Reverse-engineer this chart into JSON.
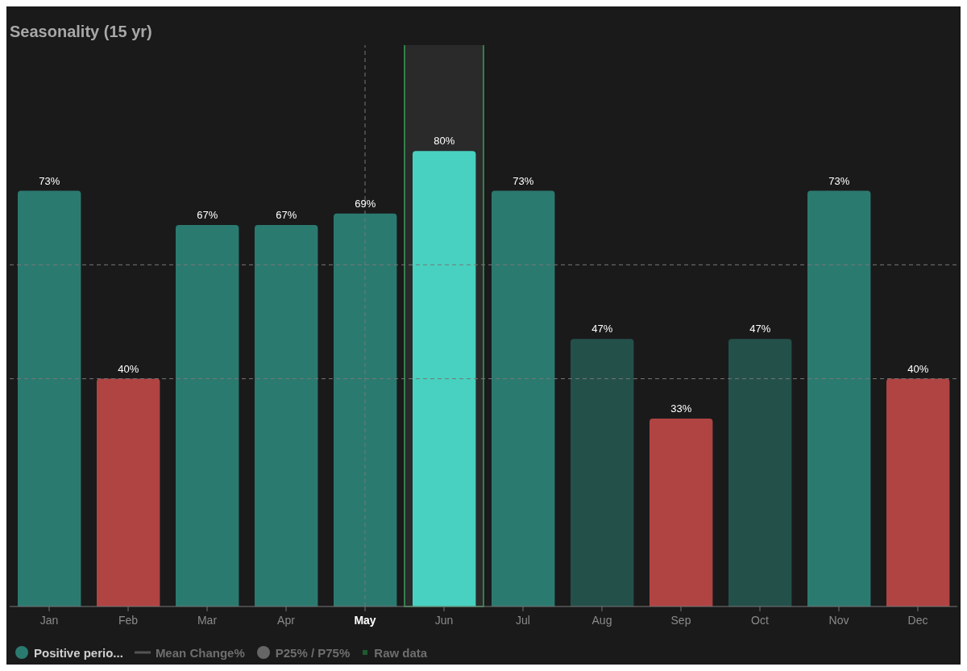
{
  "chart_data": {
    "type": "bar",
    "title": "Seasonality (15 yr)",
    "categories": [
      "Jan",
      "Feb",
      "Mar",
      "Apr",
      "May",
      "Jun",
      "Jul",
      "Aug",
      "Sep",
      "Oct",
      "Nov",
      "Dec"
    ],
    "series": [
      {
        "name": "Positive perio...",
        "color": "#2b7a70",
        "colors": [
          "#2b7a70",
          "#b04443",
          "#2b7a70",
          "#2b7a70",
          "#2b7a70",
          "#48d1c0",
          "#2b7a70",
          "#24504a",
          "#b04443",
          "#24504a",
          "#2b7a70",
          "#b04443"
        ],
        "values": [
          73,
          40,
          67,
          67,
          69,
          80,
          73,
          47,
          33,
          47,
          73,
          40
        ],
        "value_labels": [
          "73%",
          "40%",
          "67%",
          "67%",
          "69%",
          "80%",
          "73%",
          "47%",
          "33%",
          "47%",
          "73%",
          "40%"
        ]
      },
      {
        "name": "Mean Change%",
        "type": "line",
        "color": "#555555",
        "values": [
          null,
          null,
          null,
          null,
          null,
          null,
          null,
          null,
          null,
          null,
          null,
          null
        ]
      },
      {
        "name": "P25% / P75%",
        "type": "scatter",
        "marker": "circle",
        "color": "#666666",
        "values": [
          null,
          null,
          null,
          null,
          null,
          null,
          null,
          null,
          null,
          null,
          null,
          null
        ]
      },
      {
        "name": "Raw data",
        "type": "scatter",
        "marker": "square",
        "color": "#1e5a2e",
        "values": [
          null,
          null,
          null,
          null,
          null,
          null,
          null,
          null,
          null,
          null,
          null,
          null
        ]
      }
    ],
    "ylim": [
      0,
      100
    ],
    "ref_lines": [
      {
        "axis": "y",
        "value": 40,
        "color": "#777777",
        "line_style": "dashed"
      },
      {
        "axis": "y",
        "value": 60,
        "color": "#777777",
        "line_style": "dashed"
      },
      {
        "axis": "x",
        "value": "May",
        "color": "#777777",
        "line_style": "dashed"
      }
    ],
    "bands": [
      {
        "axis": "x",
        "from": "Jun",
        "to": "Jun",
        "color": "#3aa05a"
      }
    ],
    "legend": "bottom left"
  }
}
